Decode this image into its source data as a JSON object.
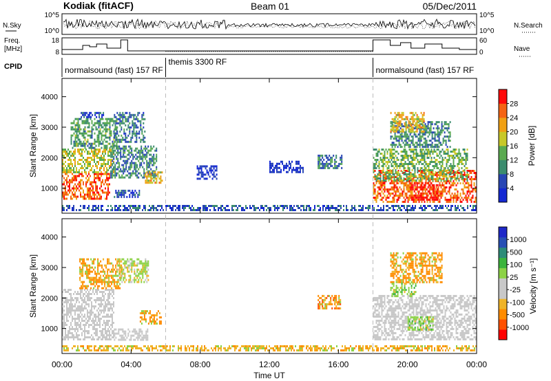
{
  "header": {
    "station": "Kodiak (fitACF)",
    "beam": "Beam 01",
    "date": "05/Dec/2011"
  },
  "strip_labels": {
    "nsky": "N.Sky",
    "nsky_ticks": [
      "10^5",
      "10^0"
    ],
    "nsearch": "N.Search",
    "nsearch_ticks": [
      "10^5",
      "10^0"
    ],
    "freq_line1": "Freq.",
    "freq_line2": "[MHz]",
    "freq_ticks": [
      "18",
      "8"
    ],
    "nave": "Nave",
    "nave_ticks": [
      "60",
      "0"
    ],
    "cpid": "CPID"
  },
  "cpid_segments": [
    {
      "label": "normalsound (fast) 157 RF",
      "start_hour": 0
    },
    {
      "label": "themis 3300 RF",
      "start_hour": 6
    },
    {
      "label": "normalsound (fast) 157 RF",
      "start_hour": 18
    }
  ],
  "colors": {
    "power_scale": [
      "#1428d2",
      "#2846b4",
      "#3c8c6e",
      "#5aaa50",
      "#c8c828",
      "#f0a014",
      "#f56414",
      "#ff0a0a"
    ],
    "velocity_scale": [
      "#ff0000",
      "#ff5000",
      "#ff8c00",
      "#f0b428",
      "#c8c8c8",
      "#c8c8c8",
      "#8cd246",
      "#3cb43c",
      "#2d8c78",
      "#2850b4",
      "#1e28c8"
    ],
    "ground_scatter": "#c8c8c8"
  },
  "chart_data": [
    {
      "type": "heatmap",
      "name": "power",
      "xlabel": "",
      "ylabel": "Slant Range [km]",
      "colorbar_label": "Power [dB]",
      "colorbar_ticks": [
        "4",
        "8",
        "12",
        "16",
        "20",
        "24",
        "28"
      ],
      "colorbar_range": [
        0,
        32
      ],
      "xlim": [
        0,
        24
      ],
      "ylim": [
        180,
        4600
      ],
      "yticks": [
        "1000",
        "2000",
        "3000",
        "4000"
      ],
      "cells": [
        {
          "t0": 0.0,
          "t1": 2.8,
          "r0": 600,
          "r1": 1500,
          "v": 26
        },
        {
          "t0": 0.0,
          "t1": 3.0,
          "r0": 1500,
          "r1": 2300,
          "v": 18
        },
        {
          "t0": 0.5,
          "t1": 3.2,
          "r0": 2300,
          "r1": 3300,
          "v": 12
        },
        {
          "t0": 1.0,
          "t1": 2.5,
          "r0": 3300,
          "r1": 3500,
          "v": 4
        },
        {
          "t0": 3.0,
          "t1": 4.8,
          "r0": 2500,
          "r1": 3500,
          "v": 8
        },
        {
          "t0": 2.8,
          "t1": 5.5,
          "r0": 1300,
          "r1": 2400,
          "v": 10
        },
        {
          "t0": 4.8,
          "t1": 5.8,
          "r0": 1150,
          "r1": 1550,
          "v": 20
        },
        {
          "t0": 3.0,
          "t1": 4.5,
          "r0": 650,
          "r1": 950,
          "v": 6
        },
        {
          "t0": 0.0,
          "t1": 24.0,
          "r0": 250,
          "r1": 450,
          "v": 6
        },
        {
          "t0": 7.8,
          "t1": 9.0,
          "r0": 1250,
          "r1": 1750,
          "v": 3
        },
        {
          "t0": 14.8,
          "t1": 16.2,
          "r0": 1600,
          "r1": 2100,
          "v": 9
        },
        {
          "t0": 12.0,
          "t1": 14.0,
          "r0": 1500,
          "r1": 1900,
          "v": 3
        },
        {
          "t0": 18.0,
          "t1": 24.0,
          "r0": 550,
          "r1": 1600,
          "v": 26
        },
        {
          "t0": 18.0,
          "t1": 23.5,
          "r0": 1200,
          "r1": 2300,
          "v": 14
        },
        {
          "t0": 19.0,
          "t1": 22.5,
          "r0": 2300,
          "r1": 3200,
          "v": 10
        },
        {
          "t0": 19.0,
          "t1": 21.0,
          "r0": 2800,
          "r1": 3500,
          "v": 20
        },
        {
          "t0": 20.2,
          "t1": 21.8,
          "r0": 600,
          "r1": 1200,
          "v": 30
        }
      ]
    },
    {
      "type": "heatmap",
      "name": "velocity",
      "xlabel": "Time UT",
      "ylabel": "Slant Range [km]",
      "colorbar_label": "Velocity [m s⁻¹]",
      "colorbar_ticks": [
        "-1000",
        "-500",
        "-100",
        "-25",
        "25",
        "100",
        "500",
        "1000"
      ],
      "xlim": [
        0,
        24
      ],
      "ylim": [
        180,
        4600
      ],
      "yticks": [
        "1000",
        "2000",
        "3000",
        "4000"
      ],
      "xticks": [
        "00:00",
        "04:00",
        "08:00",
        "12:00",
        "16:00",
        "20:00",
        "00:00"
      ],
      "cells": [
        {
          "t0": 0.0,
          "t1": 3.0,
          "r0": 600,
          "r1": 2300,
          "v": "ground"
        },
        {
          "t0": 3.0,
          "t1": 5.0,
          "r0": 600,
          "r1": 1000,
          "v": "ground"
        },
        {
          "t0": 1.0,
          "t1": 3.5,
          "r0": 2300,
          "r1": 3300,
          "v": -200
        },
        {
          "t0": 3.2,
          "t1": 5.0,
          "r0": 2500,
          "r1": 3300,
          "v": 40
        },
        {
          "t0": 4.5,
          "t1": 5.8,
          "r0": 1150,
          "r1": 1600,
          "v": -200
        },
        {
          "t0": 0.0,
          "t1": 24.0,
          "r0": 250,
          "r1": 450,
          "v": -60
        },
        {
          "t0": 14.8,
          "t1": 16.2,
          "r0": 1600,
          "r1": 2100,
          "v": -250
        },
        {
          "t0": 18.0,
          "t1": 24.0,
          "r0": 600,
          "r1": 2100,
          "v": "ground"
        },
        {
          "t0": 19.0,
          "t1": 22.0,
          "r0": 2500,
          "r1": 3500,
          "v": -200
        },
        {
          "t0": 20.0,
          "t1": 21.5,
          "r0": 900,
          "r1": 1400,
          "v": 60
        },
        {
          "t0": 19.0,
          "t1": 20.5,
          "r0": 2000,
          "r1": 2500,
          "v": 80
        }
      ]
    }
  ]
}
